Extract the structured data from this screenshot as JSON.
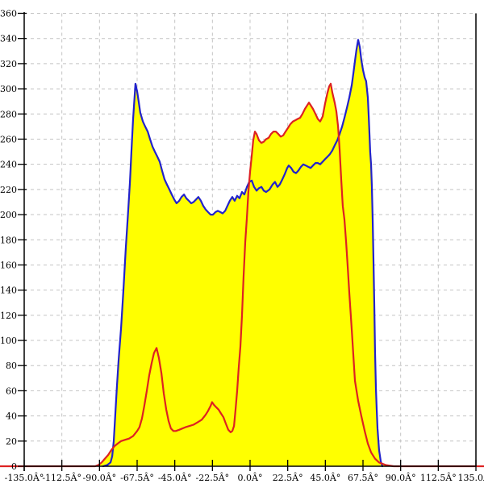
{
  "chart_data": {
    "type": "area",
    "title": "",
    "xlabel": "",
    "ylabel": "",
    "x_unit": "degrees",
    "xlim": [
      -135,
      135
    ],
    "ylim": [
      0,
      360
    ],
    "x_tick_step": 22.5,
    "y_tick_step": 20,
    "grid": "dashed",
    "legend": "none",
    "x_tick_labels": [
      "-135.0Â°",
      "-112.5Â°",
      "-90.0Â°",
      "-67.5Â°",
      "-45.0Â°",
      "-22.5Â°",
      "0.0Â°",
      "22.5Â°",
      "45.0Â°",
      "67.5Â°",
      "90.0Â°",
      "112.5Â°",
      "135.0Â°"
    ],
    "y_tick_labels": [
      "0",
      "20",
      "40",
      "60",
      "80",
      "100",
      "120",
      "140",
      "160",
      "180",
      "200",
      "220",
      "240",
      "260",
      "280",
      "300",
      "320",
      "340",
      "360"
    ],
    "colors": {
      "background": "#ffffff",
      "grid": "#c4c4c4",
      "axis": "#000000",
      "area_fill": "#ffff00",
      "blue_series": "#2222cc",
      "red_series": "#dd2222"
    },
    "series": [
      {
        "name": "blue-curve",
        "color": "#2222cc",
        "fill": "#ffff00",
        "points": [
          [
            -87.8,
            0
          ],
          [
            -85.3,
            1
          ],
          [
            -83.4,
            3
          ],
          [
            -82.4,
            8
          ],
          [
            -81.5,
            20
          ],
          [
            -80.5,
            42
          ],
          [
            -79.6,
            63
          ],
          [
            -78.6,
            84
          ],
          [
            -77.1,
            110
          ],
          [
            -75.7,
            140
          ],
          [
            -74.3,
            173
          ],
          [
            -72.8,
            204
          ],
          [
            -71.8,
            226
          ],
          [
            -70.9,
            250
          ],
          [
            -69.9,
            276
          ],
          [
            -68.9,
            296
          ],
          [
            -68.5,
            304
          ],
          [
            -67.5,
            298
          ],
          [
            -66.5,
            289
          ],
          [
            -65.6,
            281
          ],
          [
            -64.1,
            274
          ],
          [
            -62.7,
            270
          ],
          [
            -61.2,
            266
          ],
          [
            -59.8,
            260
          ],
          [
            -58.3,
            254
          ],
          [
            -56.9,
            250
          ],
          [
            -55.4,
            246
          ],
          [
            -54.0,
            242
          ],
          [
            -52.6,
            235
          ],
          [
            -51.1,
            228
          ],
          [
            -49.7,
            224
          ],
          [
            -48.2,
            220
          ],
          [
            -46.8,
            216
          ],
          [
            -45.3,
            212
          ],
          [
            -43.9,
            209
          ],
          [
            -42.4,
            211
          ],
          [
            -41.0,
            214
          ],
          [
            -39.5,
            216
          ],
          [
            -38.1,
            213
          ],
          [
            -36.6,
            211
          ],
          [
            -35.2,
            209
          ],
          [
            -33.8,
            210
          ],
          [
            -32.3,
            212
          ],
          [
            -30.9,
            214
          ],
          [
            -29.4,
            211
          ],
          [
            -28.0,
            207
          ],
          [
            -26.5,
            204
          ],
          [
            -25.1,
            202
          ],
          [
            -23.6,
            200
          ],
          [
            -22.2,
            200
          ],
          [
            -20.7,
            202
          ],
          [
            -19.3,
            203
          ],
          [
            -17.8,
            202
          ],
          [
            -16.4,
            201
          ],
          [
            -14.9,
            203
          ],
          [
            -13.5,
            207
          ],
          [
            -12.1,
            211
          ],
          [
            -10.6,
            214
          ],
          [
            -9.2,
            211
          ],
          [
            -7.7,
            215
          ],
          [
            -6.3,
            213
          ],
          [
            -4.8,
            218
          ],
          [
            -3.4,
            216
          ],
          [
            -1.9,
            222
          ],
          [
            -0.5,
            226
          ],
          [
            1.0,
            227
          ],
          [
            2.4,
            222
          ],
          [
            3.9,
            219
          ],
          [
            5.3,
            221
          ],
          [
            6.8,
            222
          ],
          [
            8.2,
            219
          ],
          [
            9.6,
            218
          ],
          [
            11.6,
            220
          ],
          [
            13.5,
            224
          ],
          [
            14.9,
            226
          ],
          [
            16.4,
            222
          ],
          [
            17.8,
            224
          ],
          [
            19.3,
            228
          ],
          [
            20.7,
            232
          ],
          [
            22.2,
            237
          ],
          [
            23.1,
            239
          ],
          [
            24.6,
            237
          ],
          [
            26.0,
            234
          ],
          [
            27.5,
            233
          ],
          [
            28.9,
            235
          ],
          [
            30.4,
            238
          ],
          [
            31.8,
            240
          ],
          [
            33.3,
            239
          ],
          [
            34.7,
            238
          ],
          [
            36.2,
            237
          ],
          [
            37.6,
            239
          ],
          [
            39.1,
            241
          ],
          [
            40.5,
            241
          ],
          [
            41.9,
            240
          ],
          [
            43.4,
            242
          ],
          [
            44.8,
            244
          ],
          [
            46.3,
            246
          ],
          [
            47.7,
            248
          ],
          [
            49.2,
            251
          ],
          [
            50.6,
            255
          ],
          [
            52.1,
            259
          ],
          [
            53.5,
            264
          ],
          [
            55.0,
            270
          ],
          [
            56.4,
            277
          ],
          [
            57.9,
            285
          ],
          [
            59.3,
            293
          ],
          [
            60.8,
            303
          ],
          [
            61.7,
            312
          ],
          [
            62.7,
            322
          ],
          [
            63.6,
            331
          ],
          [
            64.6,
            339
          ],
          [
            65.6,
            333
          ],
          [
            66.5,
            323
          ],
          [
            67.5,
            315
          ],
          [
            68.5,
            309
          ],
          [
            69.4,
            306
          ],
          [
            70.4,
            293
          ],
          [
            70.9,
            278
          ],
          [
            71.4,
            263
          ],
          [
            71.8,
            250
          ],
          [
            72.3,
            240
          ],
          [
            72.8,
            222
          ],
          [
            73.3,
            196
          ],
          [
            73.8,
            160
          ],
          [
            74.3,
            125
          ],
          [
            74.7,
            92
          ],
          [
            75.2,
            62
          ],
          [
            75.7,
            45
          ],
          [
            76.2,
            30
          ],
          [
            77.1,
            13
          ],
          [
            78.1,
            4
          ],
          [
            79.1,
            0
          ]
        ]
      },
      {
        "name": "red-curve",
        "color": "#dd2222",
        "fill": "#ffff00",
        "points": [
          [
            -149.5,
            0
          ],
          [
            -92.6,
            0
          ],
          [
            -90.6,
            1
          ],
          [
            -88.7,
            3
          ],
          [
            -86.8,
            6
          ],
          [
            -84.8,
            9
          ],
          [
            -82.9,
            13
          ],
          [
            -81.0,
            16
          ],
          [
            -79.1,
            18
          ],
          [
            -77.1,
            20
          ],
          [
            -74.7,
            21
          ],
          [
            -72.3,
            22
          ],
          [
            -69.9,
            24
          ],
          [
            -67.5,
            28
          ],
          [
            -66.1,
            31
          ],
          [
            -64.6,
            38
          ],
          [
            -63.2,
            48
          ],
          [
            -61.7,
            60
          ],
          [
            -60.3,
            72
          ],
          [
            -58.8,
            82
          ],
          [
            -57.4,
            90
          ],
          [
            -55.9,
            94
          ],
          [
            -54.5,
            86
          ],
          [
            -53.0,
            74
          ],
          [
            -51.6,
            58
          ],
          [
            -50.1,
            45
          ],
          [
            -48.7,
            36
          ],
          [
            -47.3,
            30
          ],
          [
            -45.8,
            28
          ],
          [
            -44.4,
            28
          ],
          [
            -42.4,
            29
          ],
          [
            -40.5,
            30
          ],
          [
            -38.6,
            31
          ],
          [
            -36.2,
            32
          ],
          [
            -33.8,
            33
          ],
          [
            -31.3,
            35
          ],
          [
            -28.9,
            37
          ],
          [
            -26.5,
            41
          ],
          [
            -25.1,
            44
          ],
          [
            -23.6,
            48
          ],
          [
            -22.7,
            51
          ],
          [
            -21.7,
            49
          ],
          [
            -20.3,
            47
          ],
          [
            -18.8,
            45
          ],
          [
            -17.4,
            42
          ],
          [
            -15.9,
            39
          ],
          [
            -14.5,
            34
          ],
          [
            -13.0,
            29
          ],
          [
            -11.6,
            27
          ],
          [
            -10.6,
            28
          ],
          [
            -9.6,
            32
          ],
          [
            -8.7,
            45
          ],
          [
            -7.7,
            60
          ],
          [
            -6.8,
            78
          ],
          [
            -5.8,
            95
          ],
          [
            -4.8,
            120
          ],
          [
            -3.9,
            150
          ],
          [
            -2.9,
            178
          ],
          [
            -1.9,
            198
          ],
          [
            -1.0,
            218
          ],
          [
            0.0,
            234
          ],
          [
            1.0,
            247
          ],
          [
            1.9,
            259
          ],
          [
            2.9,
            266
          ],
          [
            3.9,
            264
          ],
          [
            5.3,
            259
          ],
          [
            6.8,
            257
          ],
          [
            8.2,
            258
          ],
          [
            9.6,
            260
          ],
          [
            11.1,
            261
          ],
          [
            12.5,
            264
          ],
          [
            14.0,
            266
          ],
          [
            15.4,
            266
          ],
          [
            16.9,
            264
          ],
          [
            18.3,
            262
          ],
          [
            19.8,
            263
          ],
          [
            21.2,
            266
          ],
          [
            22.7,
            269
          ],
          [
            24.1,
            272
          ],
          [
            25.6,
            274
          ],
          [
            27.0,
            275
          ],
          [
            28.4,
            276
          ],
          [
            29.9,
            277
          ],
          [
            31.3,
            280
          ],
          [
            32.8,
            284
          ],
          [
            34.2,
            287
          ],
          [
            35.2,
            289
          ],
          [
            36.2,
            287
          ],
          [
            37.6,
            284
          ],
          [
            39.1,
            280
          ],
          [
            40.5,
            276
          ],
          [
            41.9,
            274
          ],
          [
            43.4,
            278
          ],
          [
            44.8,
            288
          ],
          [
            46.3,
            297
          ],
          [
            47.3,
            302
          ],
          [
            48.2,
            304
          ],
          [
            49.2,
            297
          ],
          [
            50.6,
            289
          ],
          [
            51.6,
            282
          ],
          [
            52.6,
            270
          ],
          [
            53.5,
            252
          ],
          [
            54.5,
            228
          ],
          [
            55.4,
            207
          ],
          [
            56.4,
            196
          ],
          [
            57.4,
            178
          ],
          [
            58.4,
            158
          ],
          [
            59.3,
            138
          ],
          [
            60.8,
            108
          ],
          [
            62.7,
            68
          ],
          [
            64.6,
            52
          ],
          [
            66.5,
            40
          ],
          [
            68.5,
            28
          ],
          [
            70.4,
            18
          ],
          [
            72.3,
            11
          ],
          [
            74.7,
            6
          ],
          [
            77.1,
            3
          ],
          [
            81.0,
            1
          ],
          [
            85.8,
            0
          ],
          [
            139.8,
            0
          ]
        ]
      }
    ]
  }
}
